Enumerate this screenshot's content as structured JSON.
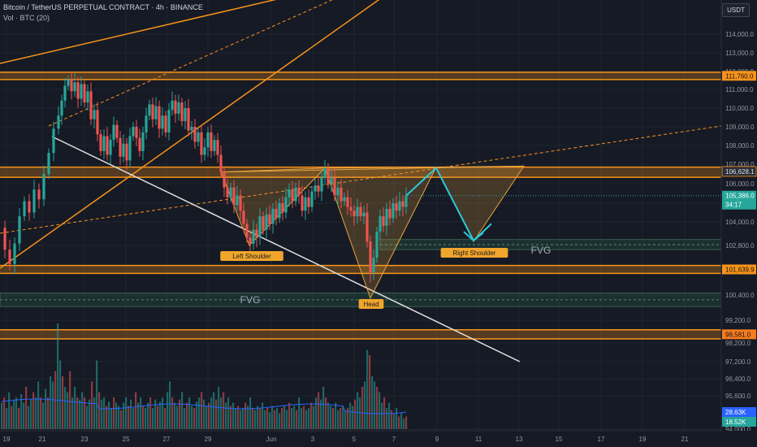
{
  "header": {
    "title": "Bitcoin / TetherUS PERPETUAL CONTRACT · 4h · BINANCE",
    "volume_label": "Vol · BTC (20)"
  },
  "currency": "USDT",
  "colors": {
    "background": "#161a25",
    "up": "#26a69a",
    "down": "#ef5350",
    "zone": "#f7931a",
    "pattern": "#e8a33d",
    "projection": "#2ec7d6",
    "trendline": "#e0e0e0",
    "fvg": "#2e7d5b"
  },
  "chart_data": {
    "type": "candlestick",
    "x_ticks": [
      "19",
      "21",
      "23",
      "25",
      "27",
      "29",
      "Jun",
      "3",
      "5",
      "7",
      "9",
      "11",
      "13",
      "15",
      "17",
      "19",
      "21"
    ],
    "y_ticks": [
      "114,000.0",
      "113,000.0",
      "112,000.0",
      "111,000.0",
      "110,000.0",
      "109,000.0",
      "108,000.0",
      "107,000.0",
      "106,000.0",
      "105,000.0",
      "104,000.0",
      "102,800.0",
      "100,400.0",
      "99,200.0",
      "98,200.0",
      "97,200.0",
      "96,400.0",
      "95,600.0",
      "94,000.0"
    ],
    "price_labels": [
      {
        "value": "111,760.0",
        "price": 111760,
        "style": "zone"
      },
      {
        "value": "106,628.1",
        "price": 106628,
        "style": "dark"
      },
      {
        "value": "105,386.0",
        "price": 105386,
        "style": "current"
      },
      {
        "value": "34:17",
        "price": 104920,
        "style": "current"
      },
      {
        "value": "101,639.9",
        "price": 101640,
        "style": "zone"
      },
      {
        "value": "98,581.0",
        "price": 98581,
        "style": "red"
      },
      {
        "value": "28.63K",
        "price": 95000,
        "style": "blue"
      },
      {
        "value": "18.52K",
        "price": 94550,
        "style": "teal"
      }
    ],
    "annotations": [
      {
        "text": "Left Shoulder",
        "x": 310,
        "y": 315
      },
      {
        "text": "Head",
        "x": 457,
        "y": 374
      },
      {
        "text": "Right Shoulder",
        "x": 584,
        "y": 311
      },
      {
        "text": "FVG",
        "x": 308,
        "y": 369,
        "style": "plain"
      },
      {
        "text": "FVG",
        "x": 666,
        "y": 308,
        "style": "plain"
      }
    ],
    "zones": [
      {
        "name": "resistance-high",
        "from": 111550,
        "to": 111960
      },
      {
        "name": "neckline-zone",
        "from": 106330,
        "to": 106850
      },
      {
        "name": "support-zone",
        "from": 101450,
        "to": 101830
      },
      {
        "name": "support-low",
        "from": 98380,
        "to": 98780
      }
    ],
    "fvg_zones": [
      {
        "from": 102600,
        "to": 103100,
        "x_from": 468,
        "x_to": 888
      },
      {
        "from": 99850,
        "to": 100500,
        "x_from": 0,
        "x_to": 888
      }
    ],
    "pattern_points": [
      {
        "label": "left-shoulder",
        "x": 307,
        "price": 102800
      },
      {
        "label": "head",
        "x": 456,
        "price": 100250
      },
      {
        "label": "right-shoulder",
        "x": 583,
        "price": 103000
      },
      {
        "label": "neck-1",
        "x": 272,
        "price": 106600
      },
      {
        "label": "neck-2",
        "x": 400,
        "price": 106800
      },
      {
        "label": "neck-3",
        "x": 537,
        "price": 106850
      },
      {
        "label": "neck-4",
        "x": 645,
        "price": 106900
      }
    ],
    "price_path": [
      [
        0,
        103700
      ],
      [
        6,
        102600
      ],
      [
        12,
        101900
      ],
      [
        18,
        102900
      ],
      [
        24,
        104300
      ],
      [
        30,
        105100
      ],
      [
        36,
        104500
      ],
      [
        42,
        105700
      ],
      [
        48,
        105200
      ],
      [
        54,
        106500
      ],
      [
        60,
        107600
      ],
      [
        66,
        108900
      ],
      [
        72,
        109600
      ],
      [
        76,
        110400
      ],
      [
        80,
        111200
      ],
      [
        84,
        111550
      ],
      [
        88,
        110900
      ],
      [
        92,
        111400
      ],
      [
        96,
        110500
      ],
      [
        100,
        111300
      ],
      [
        104,
        110300
      ],
      [
        108,
        110900
      ],
      [
        112,
        109400
      ],
      [
        116,
        109900
      ],
      [
        120,
        108600
      ],
      [
        124,
        107700
      ],
      [
        128,
        108500
      ],
      [
        132,
        107500
      ],
      [
        136,
        108300
      ],
      [
        140,
        109100
      ],
      [
        144,
        108400
      ],
      [
        148,
        107400
      ],
      [
        152,
        108100
      ],
      [
        156,
        107200
      ],
      [
        160,
        108500
      ],
      [
        164,
        109000
      ],
      [
        168,
        108400
      ],
      [
        172,
        107700
      ],
      [
        176,
        108700
      ],
      [
        180,
        109600
      ],
      [
        184,
        110200
      ],
      [
        188,
        109400
      ],
      [
        192,
        110100
      ],
      [
        196,
        108900
      ],
      [
        200,
        109600
      ],
      [
        204,
        108700
      ],
      [
        208,
        109900
      ],
      [
        212,
        110400
      ],
      [
        216,
        109700
      ],
      [
        220,
        110300
      ],
      [
        224,
        109300
      ],
      [
        228,
        110000
      ],
      [
        232,
        108800
      ],
      [
        236,
        109000
      ],
      [
        240,
        108200
      ],
      [
        244,
        108700
      ],
      [
        248,
        107500
      ],
      [
        252,
        107900
      ],
      [
        256,
        108700
      ],
      [
        260,
        107700
      ],
      [
        264,
        108300
      ],
      [
        268,
        107500
      ],
      [
        272,
        106600
      ],
      [
        276,
        105800
      ],
      [
        280,
        105300
      ],
      [
        284,
        105800
      ],
      [
        288,
        104900
      ],
      [
        292,
        105400
      ],
      [
        296,
        104600
      ],
      [
        300,
        103900
      ],
      [
        304,
        103200
      ],
      [
        308,
        102900
      ],
      [
        312,
        103600
      ],
      [
        316,
        103200
      ],
      [
        320,
        104300
      ],
      [
        324,
        103600
      ],
      [
        328,
        104400
      ],
      [
        332,
        103900
      ],
      [
        336,
        104700
      ],
      [
        340,
        104200
      ],
      [
        344,
        105000
      ],
      [
        348,
        104500
      ],
      [
        352,
        105300
      ],
      [
        356,
        105700
      ],
      [
        360,
        105100
      ],
      [
        364,
        105800
      ],
      [
        368,
        105400
      ],
      [
        372,
        104600
      ],
      [
        376,
        105300
      ],
      [
        380,
        104800
      ],
      [
        384,
        105600
      ],
      [
        388,
        105900
      ],
      [
        392,
        105600
      ],
      [
        396,
        106300
      ],
      [
        400,
        106800
      ],
      [
        404,
        106000
      ],
      [
        408,
        106300
      ],
      [
        412,
        105400
      ],
      [
        416,
        105800
      ],
      [
        420,
        105100
      ],
      [
        424,
        105300
      ],
      [
        428,
        104800
      ],
      [
        432,
        104600
      ],
      [
        436,
        104300
      ],
      [
        440,
        104800
      ],
      [
        444,
        104300
      ],
      [
        448,
        104500
      ],
      [
        452,
        103000
      ],
      [
        456,
        101500
      ],
      [
        460,
        102200
      ],
      [
        464,
        103500
      ],
      [
        468,
        104300
      ],
      [
        472,
        103800
      ],
      [
        476,
        104700
      ],
      [
        480,
        104200
      ],
      [
        484,
        105000
      ],
      [
        488,
        104600
      ],
      [
        492,
        105100
      ],
      [
        496,
        104800
      ],
      [
        500,
        105386
      ]
    ],
    "volume": [
      [
        2,
        0.25
      ],
      [
        5,
        0.3
      ],
      [
        8,
        0.2
      ],
      [
        11,
        0.35
      ],
      [
        14,
        0.22
      ],
      [
        17,
        0.28
      ],
      [
        20,
        0.3
      ],
      [
        23,
        0.2
      ],
      [
        26,
        0.33
      ],
      [
        29,
        0.25
      ],
      [
        32,
        0.4
      ],
      [
        35,
        0.22
      ],
      [
        38,
        0.28
      ],
      [
        41,
        0.35
      ],
      [
        44,
        0.3
      ],
      [
        47,
        0.45
      ],
      [
        50,
        0.3
      ],
      [
        53,
        0.25
      ],
      [
        56,
        0.38
      ],
      [
        59,
        0.3
      ],
      [
        62,
        0.5
      ],
      [
        65,
        0.45
      ],
      [
        68,
        0.55
      ],
      [
        71,
        1.0
      ],
      [
        74,
        0.65
      ],
      [
        77,
        0.5
      ],
      [
        80,
        0.4
      ],
      [
        83,
        0.35
      ],
      [
        86,
        0.55
      ],
      [
        89,
        0.3
      ],
      [
        92,
        0.4
      ],
      [
        95,
        0.3
      ],
      [
        98,
        0.28
      ],
      [
        101,
        0.35
      ],
      [
        104,
        0.3
      ],
      [
        107,
        0.22
      ],
      [
        110,
        0.28
      ],
      [
        113,
        0.45
      ],
      [
        116,
        0.3
      ],
      [
        119,
        0.65
      ],
      [
        122,
        0.35
      ],
      [
        125,
        0.28
      ],
      [
        128,
        0.3
      ],
      [
        131,
        0.22
      ],
      [
        134,
        0.26
      ],
      [
        137,
        0.2
      ],
      [
        140,
        0.3
      ],
      [
        143,
        0.25
      ],
      [
        146,
        0.22
      ],
      [
        149,
        0.18
      ],
      [
        152,
        0.25
      ],
      [
        155,
        0.3
      ],
      [
        158,
        0.22
      ],
      [
        161,
        0.28
      ],
      [
        164,
        0.2
      ],
      [
        167,
        0.35
      ],
      [
        170,
        0.25
      ],
      [
        173,
        0.3
      ],
      [
        176,
        0.22
      ],
      [
        179,
        0.2
      ],
      [
        182,
        0.25
      ],
      [
        185,
        0.3
      ],
      [
        188,
        0.2
      ],
      [
        191,
        0.28
      ],
      [
        194,
        0.22
      ],
      [
        197,
        0.26
      ],
      [
        200,
        0.3
      ],
      [
        203,
        0.2
      ],
      [
        206,
        0.35
      ],
      [
        209,
        0.45
      ],
      [
        212,
        0.3
      ],
      [
        215,
        0.25
      ],
      [
        218,
        0.22
      ],
      [
        221,
        0.28
      ],
      [
        224,
        0.35
      ],
      [
        227,
        0.2
      ],
      [
        230,
        0.25
      ],
      [
        233,
        0.3
      ],
      [
        236,
        0.22
      ],
      [
        239,
        0.2
      ],
      [
        242,
        0.26
      ],
      [
        245,
        0.3
      ],
      [
        248,
        0.35
      ],
      [
        251,
        0.28
      ],
      [
        254,
        0.22
      ],
      [
        257,
        0.25
      ],
      [
        260,
        0.3
      ],
      [
        263,
        0.35
      ],
      [
        266,
        0.28
      ],
      [
        269,
        0.4
      ],
      [
        272,
        0.3
      ],
      [
        275,
        0.35
      ],
      [
        278,
        0.25
      ],
      [
        281,
        0.3
      ],
      [
        284,
        0.22
      ],
      [
        287,
        0.25
      ],
      [
        290,
        0.2
      ],
      [
        293,
        0.22
      ],
      [
        296,
        0.18
      ],
      [
        299,
        0.2
      ],
      [
        302,
        0.25
      ],
      [
        305,
        0.22
      ],
      [
        308,
        0.3
      ],
      [
        311,
        0.2
      ],
      [
        314,
        0.18
      ],
      [
        317,
        0.22
      ],
      [
        320,
        0.2
      ],
      [
        323,
        0.25
      ],
      [
        326,
        0.18
      ],
      [
        329,
        0.2
      ],
      [
        332,
        0.16
      ],
      [
        335,
        0.22
      ],
      [
        338,
        0.18
      ],
      [
        341,
        0.2
      ],
      [
        344,
        0.15
      ],
      [
        347,
        0.2
      ],
      [
        350,
        0.22
      ],
      [
        353,
        0.18
      ],
      [
        356,
        0.25
      ],
      [
        359,
        0.2
      ],
      [
        362,
        0.22
      ],
      [
        365,
        0.18
      ],
      [
        368,
        0.3
      ],
      [
        371,
        0.2
      ],
      [
        374,
        0.22
      ],
      [
        377,
        0.18
      ],
      [
        380,
        0.2
      ],
      [
        383,
        0.25
      ],
      [
        386,
        0.22
      ],
      [
        389,
        0.3
      ],
      [
        392,
        0.35
      ],
      [
        395,
        0.28
      ],
      [
        398,
        0.4
      ],
      [
        401,
        0.3
      ],
      [
        404,
        0.25
      ],
      [
        407,
        0.22
      ],
      [
        410,
        0.2
      ],
      [
        413,
        0.25
      ],
      [
        416,
        0.18
      ],
      [
        419,
        0.2
      ],
      [
        422,
        0.22
      ],
      [
        425,
        0.18
      ],
      [
        428,
        0.2
      ],
      [
        431,
        0.25
      ],
      [
        434,
        0.22
      ],
      [
        437,
        0.28
      ],
      [
        440,
        0.35
      ],
      [
        443,
        0.3
      ],
      [
        446,
        0.4
      ],
      [
        449,
        0.45
      ],
      [
        452,
        0.75
      ],
      [
        455,
        0.7
      ],
      [
        458,
        0.5
      ],
      [
        461,
        0.45
      ],
      [
        464,
        0.4
      ],
      [
        467,
        0.35
      ],
      [
        470,
        0.25
      ],
      [
        473,
        0.3
      ],
      [
        476,
        0.2
      ],
      [
        479,
        0.25
      ],
      [
        482,
        0.18
      ],
      [
        485,
        0.15
      ],
      [
        488,
        0.2
      ],
      [
        491,
        0.12
      ],
      [
        494,
        0.15
      ],
      [
        497,
        0.1
      ],
      [
        500,
        0.12
      ]
    ],
    "y_axis": {
      "min": 93700,
      "max": 115400,
      "position": "right"
    },
    "grid": true
  }
}
